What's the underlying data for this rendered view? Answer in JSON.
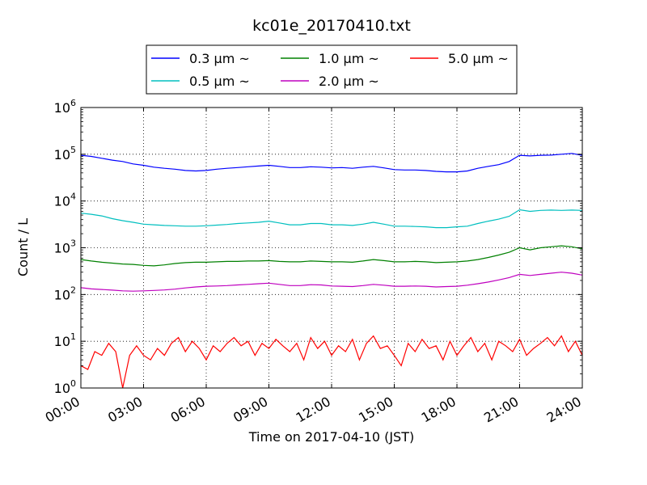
{
  "chart_data": {
    "type": "line",
    "title": "kc01e_20170410.txt",
    "xlabel": "Time on 2017-04-10 (JST)",
    "ylabel": "Count / L",
    "yscale": "log",
    "xlim": [
      "00:00",
      "24:00"
    ],
    "ylim": [
      1,
      1000000
    ],
    "grid": true,
    "legend_placement": "top-center",
    "x_ticks": [
      "00:00",
      "03:00",
      "06:00",
      "09:00",
      "12:00",
      "15:00",
      "18:00",
      "21:00",
      "24:00"
    ],
    "y_ticks": [
      {
        "base": "10",
        "exp": "0",
        "value": 1
      },
      {
        "base": "10",
        "exp": "1",
        "value": 10
      },
      {
        "base": "10",
        "exp": "2",
        "value": 100
      },
      {
        "base": "10",
        "exp": "3",
        "value": 1000
      },
      {
        "base": "10",
        "exp": "4",
        "value": 10000
      },
      {
        "base": "10",
        "exp": "5",
        "value": 100000
      },
      {
        "base": "10",
        "exp": "6",
        "value": 1000000
      }
    ],
    "series": [
      {
        "name": "0.3 μm ~",
        "color": "#0000ff",
        "x": [
          "00:00",
          "00:30",
          "01:00",
          "01:30",
          "02:00",
          "02:30",
          "03:00",
          "03:30",
          "04:00",
          "04:30",
          "05:00",
          "05:30",
          "06:00",
          "06:30",
          "07:00",
          "07:30",
          "08:00",
          "08:30",
          "09:00",
          "09:30",
          "10:00",
          "10:30",
          "11:00",
          "11:30",
          "12:00",
          "12:30",
          "13:00",
          "13:30",
          "14:00",
          "14:30",
          "15:00",
          "15:30",
          "16:00",
          "16:30",
          "17:00",
          "17:30",
          "18:00",
          "18:30",
          "19:00",
          "19:30",
          "20:00",
          "20:30",
          "21:00",
          "21:30",
          "22:00",
          "22:30",
          "23:00",
          "23:30",
          "24:00"
        ],
        "values": [
          95000,
          90000,
          82000,
          75000,
          70000,
          62000,
          58000,
          53000,
          50000,
          48000,
          45000,
          44000,
          45000,
          48000,
          50000,
          52000,
          54000,
          56000,
          58000,
          55000,
          52000,
          52000,
          54000,
          53000,
          51000,
          52000,
          50000,
          53000,
          55000,
          51000,
          47000,
          46000,
          46000,
          45000,
          43000,
          42000,
          42000,
          44000,
          50000,
          55000,
          60000,
          70000,
          95000,
          92000,
          95000,
          96000,
          100000,
          104000,
          95000
        ]
      },
      {
        "name": "0.5 μm ~",
        "color": "#00bfbf",
        "x": [
          "00:00",
          "00:30",
          "01:00",
          "01:30",
          "02:00",
          "02:30",
          "03:00",
          "03:30",
          "04:00",
          "04:30",
          "05:00",
          "05:30",
          "06:00",
          "06:30",
          "07:00",
          "07:30",
          "08:00",
          "08:30",
          "09:00",
          "09:30",
          "10:00",
          "10:30",
          "11:00",
          "11:30",
          "12:00",
          "12:30",
          "13:00",
          "13:30",
          "14:00",
          "14:30",
          "15:00",
          "15:30",
          "16:00",
          "16:30",
          "17:00",
          "17:30",
          "18:00",
          "18:30",
          "19:00",
          "19:30",
          "20:00",
          "20:30",
          "21:00",
          "21:30",
          "22:00",
          "22:30",
          "23:00",
          "23:30",
          "24:00"
        ],
        "values": [
          5500,
          5200,
          4800,
          4200,
          3800,
          3500,
          3200,
          3100,
          3000,
          2950,
          2900,
          2900,
          2950,
          3050,
          3150,
          3300,
          3400,
          3500,
          3700,
          3400,
          3100,
          3100,
          3300,
          3300,
          3100,
          3100,
          3000,
          3200,
          3500,
          3200,
          2900,
          2900,
          2850,
          2800,
          2700,
          2700,
          2800,
          2900,
          3300,
          3700,
          4100,
          4700,
          6500,
          6000,
          6300,
          6400,
          6300,
          6400,
          6300
        ]
      },
      {
        "name": "1.0 μm ~",
        "color": "#008000",
        "x": [
          "00:00",
          "00:30",
          "01:00",
          "01:30",
          "02:00",
          "02:30",
          "03:00",
          "03:30",
          "04:00",
          "04:30",
          "05:00",
          "05:30",
          "06:00",
          "06:30",
          "07:00",
          "07:30",
          "08:00",
          "08:30",
          "09:00",
          "09:30",
          "10:00",
          "10:30",
          "11:00",
          "11:30",
          "12:00",
          "12:30",
          "13:00",
          "13:30",
          "14:00",
          "14:30",
          "15:00",
          "15:30",
          "16:00",
          "16:30",
          "17:00",
          "17:30",
          "18:00",
          "18:30",
          "19:00",
          "19:30",
          "20:00",
          "20:30",
          "21:00",
          "21:30",
          "22:00",
          "22:30",
          "23:00",
          "23:30",
          "24:00"
        ],
        "values": [
          560,
          520,
          490,
          470,
          450,
          440,
          420,
          410,
          430,
          460,
          480,
          490,
          490,
          500,
          510,
          510,
          520,
          520,
          530,
          510,
          500,
          500,
          520,
          510,
          500,
          500,
          490,
          520,
          560,
          530,
          500,
          500,
          510,
          500,
          480,
          490,
          500,
          520,
          560,
          620,
          700,
          800,
          1000,
          900,
          1000,
          1050,
          1100,
          1050,
          950
        ]
      },
      {
        "name": "2.0 μm ~",
        "color": "#bf00bf",
        "x": [
          "00:00",
          "00:30",
          "01:00",
          "01:30",
          "02:00",
          "02:30",
          "03:00",
          "03:30",
          "04:00",
          "04:30",
          "05:00",
          "05:30",
          "06:00",
          "06:30",
          "07:00",
          "07:30",
          "08:00",
          "08:30",
          "09:00",
          "09:30",
          "10:00",
          "10:30",
          "11:00",
          "11:30",
          "12:00",
          "12:30",
          "13:00",
          "13:30",
          "14:00",
          "14:30",
          "15:00",
          "15:30",
          "16:00",
          "16:30",
          "17:00",
          "17:30",
          "18:00",
          "18:30",
          "19:00",
          "19:30",
          "20:00",
          "20:30",
          "21:00",
          "21:30",
          "22:00",
          "22:30",
          "23:00",
          "23:30",
          "24:00"
        ],
        "values": [
          140,
          132,
          128,
          124,
          120,
          118,
          120,
          122,
          125,
          130,
          138,
          145,
          150,
          152,
          155,
          160,
          165,
          170,
          175,
          165,
          155,
          155,
          162,
          160,
          152,
          150,
          148,
          155,
          165,
          158,
          150,
          150,
          152,
          150,
          145,
          148,
          150,
          158,
          170,
          185,
          205,
          230,
          270,
          255,
          270,
          285,
          300,
          285,
          260
        ]
      },
      {
        "name": "5.0 μm ~",
        "color": "#ff0000",
        "x": [
          "00:00",
          "00:20",
          "00:40",
          "01:00",
          "01:20",
          "01:40",
          "02:00",
          "02:20",
          "02:40",
          "03:00",
          "03:20",
          "03:40",
          "04:00",
          "04:20",
          "04:40",
          "05:00",
          "05:20",
          "05:40",
          "06:00",
          "06:20",
          "06:40",
          "07:00",
          "07:20",
          "07:40",
          "08:00",
          "08:20",
          "08:40",
          "09:00",
          "09:20",
          "09:40",
          "10:00",
          "10:20",
          "10:40",
          "11:00",
          "11:20",
          "11:40",
          "12:00",
          "12:20",
          "12:40",
          "13:00",
          "13:20",
          "13:40",
          "14:00",
          "14:20",
          "14:40",
          "15:00",
          "15:20",
          "15:40",
          "16:00",
          "16:20",
          "16:40",
          "17:00",
          "17:20",
          "17:40",
          "18:00",
          "18:20",
          "18:40",
          "19:00",
          "19:20",
          "19:40",
          "20:00",
          "20:20",
          "20:40",
          "21:00",
          "21:20",
          "21:40",
          "22:00",
          "22:20",
          "22:40",
          "23:00",
          "23:20",
          "23:40",
          "24:00"
        ],
        "values": [
          3,
          2.5,
          6,
          5,
          9,
          6,
          1,
          5,
          8,
          5,
          4,
          7,
          5,
          9,
          12,
          6,
          10,
          7,
          4,
          8,
          6,
          9,
          12,
          8,
          10,
          5,
          9,
          7,
          11,
          8,
          6,
          9,
          4,
          12,
          7,
          10,
          5,
          8,
          6,
          11,
          4,
          9,
          13,
          7,
          8,
          5,
          3,
          9,
          6,
          11,
          7,
          8,
          4,
          10,
          5,
          8,
          12,
          6,
          9,
          4,
          10,
          8,
          6,
          11,
          5,
          7,
          9,
          12,
          8,
          13,
          6,
          10,
          5
        ]
      }
    ]
  }
}
